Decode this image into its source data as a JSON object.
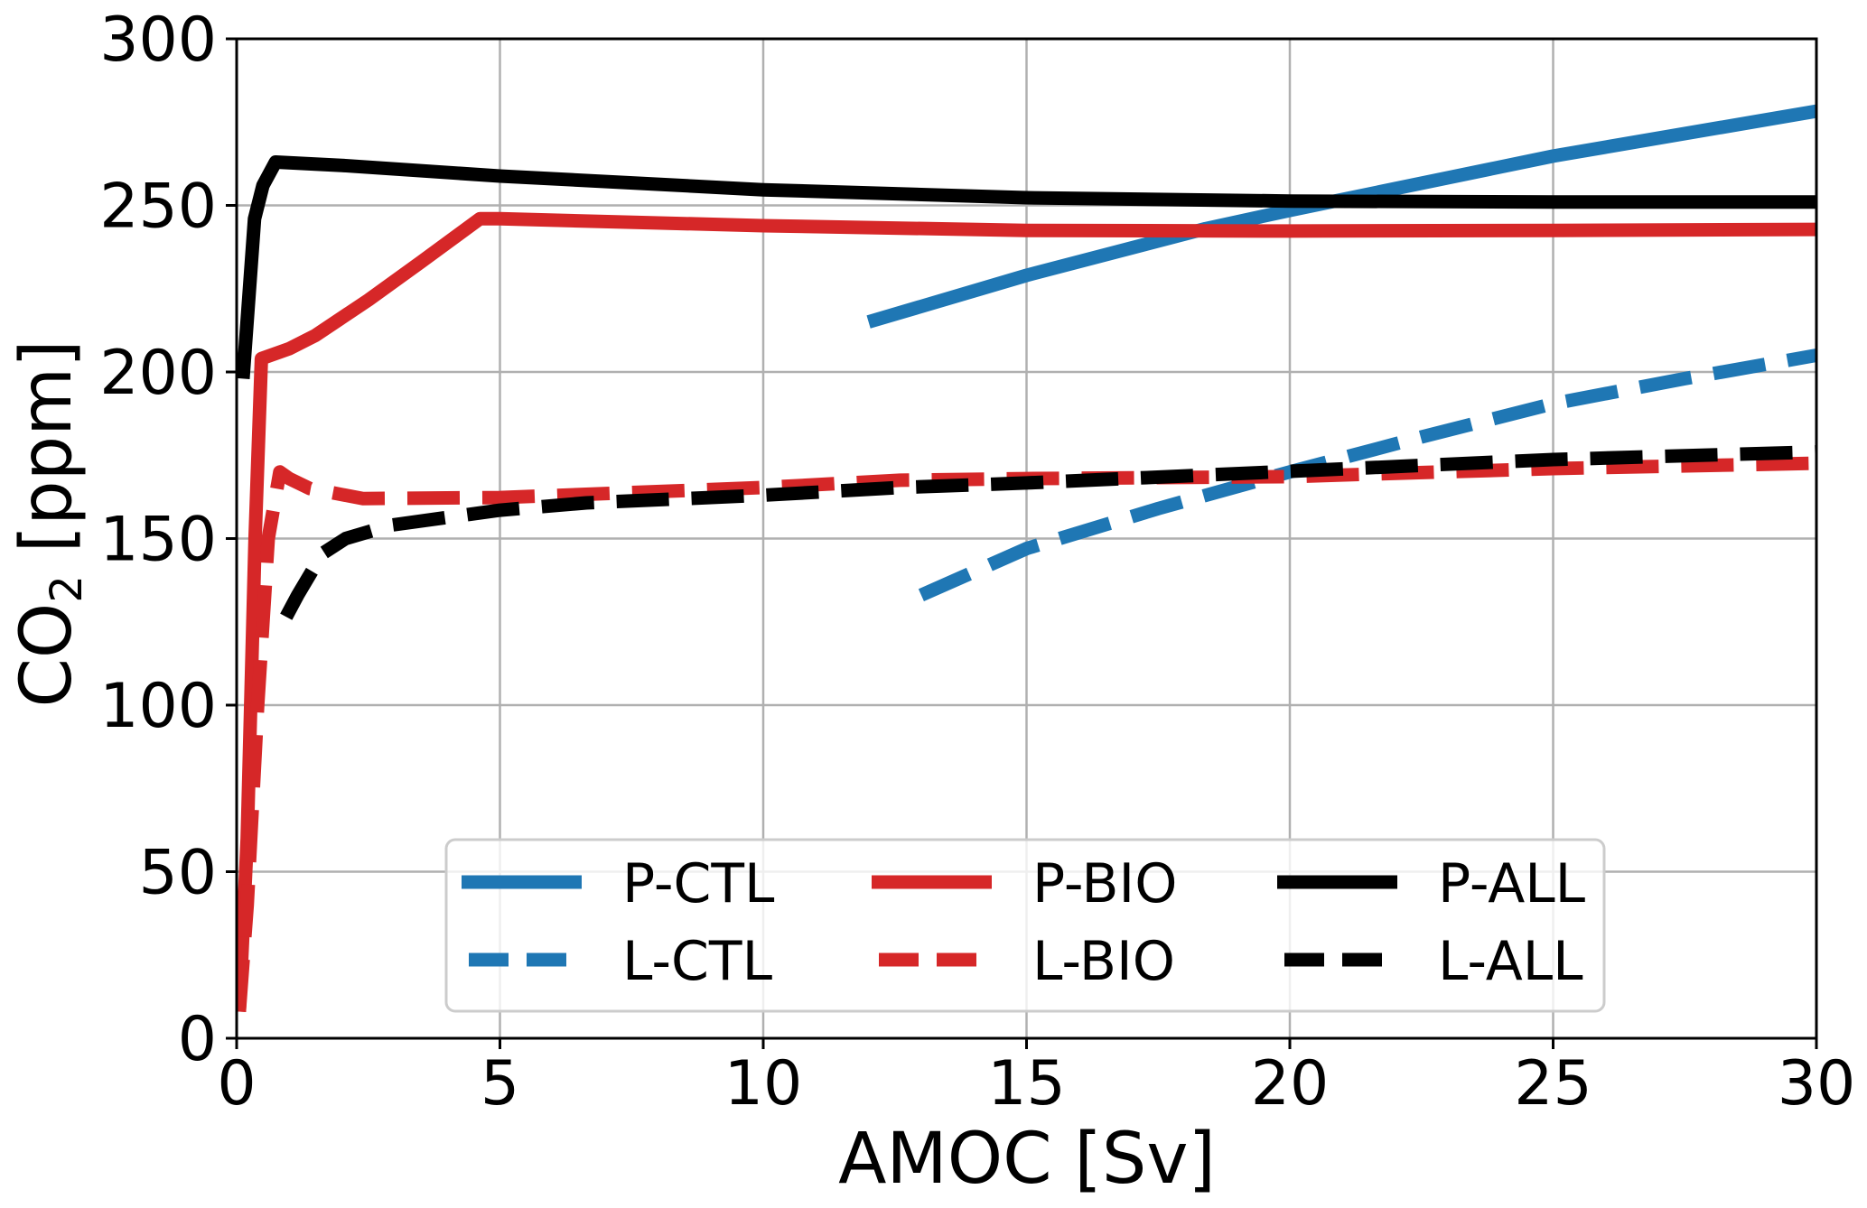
{
  "chart_data": {
    "type": "line",
    "title": "",
    "xlabel": "AMOC [Sv]",
    "ylabel_main": "CO",
    "ylabel_sub": "2",
    "ylabel_unit": " [ppm]",
    "xlim": [
      0,
      30
    ],
    "ylim": [
      0,
      300
    ],
    "xticks": [
      0,
      5,
      10,
      15,
      20,
      25,
      30
    ],
    "yticks": [
      0,
      50,
      100,
      150,
      200,
      250,
      300
    ],
    "xtick_labels": [
      "0",
      "5",
      "10",
      "15",
      "20",
      "25",
      "30"
    ],
    "ytick_labels": [
      "0",
      "50",
      "100",
      "150",
      "200",
      "250",
      "300"
    ],
    "grid": true,
    "legend": {
      "placement": "lower-center",
      "columns": 3
    },
    "series": [
      {
        "name": "P-CTL",
        "color": "#1f77b4",
        "style": "solid",
        "x": [
          12.0,
          15.0,
          18.4,
          20.0,
          25.0,
          30.0
        ],
        "y": [
          215,
          229,
          243,
          248.5,
          264.8,
          278.3
        ]
      },
      {
        "name": "L-CTL",
        "color": "#1f77b4",
        "style": "dashed",
        "x": [
          13.0,
          15.0,
          17.5,
          20.0,
          22.5,
          25.0,
          27.5,
          30.0
        ],
        "y": [
          133,
          147,
          159,
          170,
          180.5,
          190.5,
          198,
          205
        ]
      },
      {
        "name": "P-BIO",
        "color": "#d62728",
        "style": "solid",
        "x": [
          0.05,
          0.2,
          0.35,
          0.47,
          1.0,
          1.5,
          2.5,
          3.5,
          4.62,
          5.0,
          10.0,
          15.0,
          20.0,
          25.0,
          30.0
        ],
        "y": [
          8,
          60,
          150,
          204,
          207,
          211,
          221.6,
          233,
          246,
          246,
          243.9,
          242.5,
          242.3,
          242.5,
          242.8
        ]
      },
      {
        "name": "L-BIO",
        "color": "#d62728",
        "style": "dashed",
        "x": [
          0.05,
          0.2,
          0.4,
          0.6,
          0.82,
          1.0,
          1.39,
          2.4,
          5.0,
          10.0,
          12.6,
          15.0,
          20.0,
          25.0,
          30.0
        ],
        "y": [
          8,
          40,
          100,
          150,
          170,
          168,
          165,
          162,
          162.3,
          165.3,
          167.5,
          168,
          168.6,
          171,
          172.6
        ]
      },
      {
        "name": "P-ALL",
        "color": "#000000",
        "style": "solid",
        "x": [
          0.12,
          0.34,
          0.5,
          0.74,
          2.0,
          5.0,
          10.0,
          15.0,
          20.0,
          25.0,
          30.0
        ],
        "y": [
          198,
          246,
          256,
          263,
          262,
          258.8,
          254.7,
          252.3,
          251.3,
          251,
          251
        ]
      },
      {
        "name": "L-ALL",
        "color": "#000000",
        "style": "dashed",
        "x": [
          0.94,
          1.16,
          1.63,
          2.07,
          2.93,
          5.0,
          6.64,
          10.0,
          12.6,
          15.0,
          20.0,
          25.0,
          30.0
        ],
        "y": [
          126.5,
          133,
          145.5,
          150,
          154,
          158.5,
          160.7,
          163,
          165.3,
          166.7,
          170.2,
          173.7,
          176
        ]
      }
    ]
  }
}
